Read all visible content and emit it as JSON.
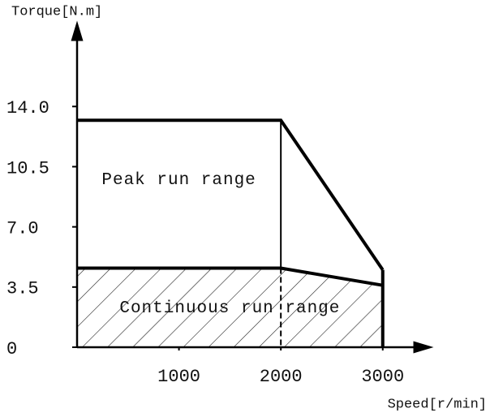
{
  "chart_data": {
    "type": "line",
    "y_label": "Torque[N.m]",
    "x_label": "Speed[r/min]",
    "xlim": [
      0,
      3400
    ],
    "xticks": [
      1000,
      2000,
      3000
    ],
    "ylim": [
      0,
      18.4
    ],
    "yticks": [
      0,
      3.5,
      {
        "value": 7,
        "label": "7.0"
      },
      10.5,
      {
        "value": 14,
        "label": "14.0"
      }
    ],
    "x": [
      0,
      2000,
      3000
    ],
    "series": [
      {
        "name": "Peak run range",
        "color": "#000000",
        "values": [
          13.2,
          13.2,
          4.5
        ]
      },
      {
        "name": "Continuous run range",
        "color": "#000000",
        "values": [
          4.6,
          4.6,
          3.6
        ]
      }
    ]
  }
}
